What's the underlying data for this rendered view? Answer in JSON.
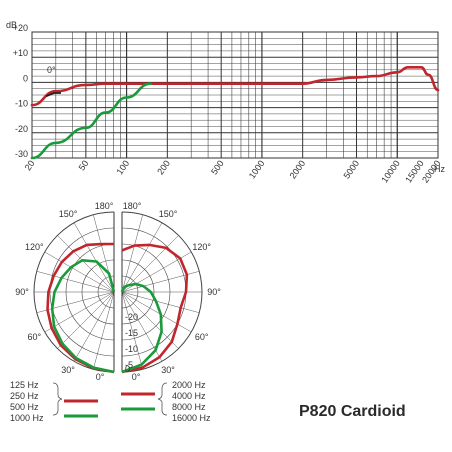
{
  "chart_data": [
    {
      "type": "line",
      "title": "",
      "xlabel": "Hz",
      "ylabel": "dB",
      "x_scale": "log",
      "xlim": [
        20,
        20000
      ],
      "ylim": [
        -30,
        20
      ],
      "y_ticks": [
        "+20",
        "+10",
        "0",
        "-10",
        "-20",
        "-30"
      ],
      "x_ticks": [
        "20",
        "50",
        "100",
        "200",
        "500",
        "1000",
        "2000",
        "5000",
        "10000",
        "15000",
        "20000"
      ],
      "annotation": "0°",
      "series": [
        {
          "color": "#c0272d",
          "x": [
            20,
            30,
            50,
            70,
            100,
            150,
            200,
            500,
            1000,
            2000,
            3000,
            5000,
            7000,
            10000,
            12000,
            15000,
            17000,
            20000
          ],
          "y": [
            -9,
            -3.5,
            -1,
            -0.5,
            -0.5,
            -0.5,
            -0.5,
            -0.5,
            -0.5,
            -0.5,
            1,
            2,
            2.5,
            4,
            6,
            6,
            3,
            -3
          ]
        },
        {
          "color": "#1a9a3a",
          "x": [
            20,
            30,
            50,
            70,
            100,
            150
          ],
          "y": [
            -30,
            -24,
            -18,
            -12,
            -6,
            -0.5
          ]
        }
      ]
    },
    {
      "type": "polar",
      "angle_labels": [
        "180°",
        "180°",
        "150°",
        "150°",
        "120°",
        "120°",
        "90°",
        "90°",
        "60°",
        "60°",
        "30°",
        "30°",
        "0°",
        "0°"
      ],
      "radial_labels": [
        "-20",
        "-15",
        "-10",
        "-5",
        "0"
      ],
      "left_series": [
        {
          "name": "125 Hz, 250 Hz, 500 Hz",
          "color": "#c0272d"
        },
        {
          "name": "1000 Hz",
          "color": "#1a9a3a"
        }
      ],
      "right_series": [
        {
          "name": "2000 Hz, 4000 Hz, 8000 Hz",
          "color": "#c0272d"
        },
        {
          "name": "16000 Hz",
          "color": "#1a9a3a"
        }
      ]
    }
  ],
  "legend": {
    "left_group": [
      "125 Hz",
      "250 Hz",
      "500 Hz"
    ],
    "left_single": "1000 Hz",
    "right_group": [
      "2000 Hz",
      "4000 Hz",
      "8000 Hz"
    ],
    "right_single": "16000 Hz"
  },
  "model_label": "P820 Cardioid",
  "colors": {
    "red": "#c0272d",
    "green": "#1a9a3a",
    "grid": "#333333"
  }
}
